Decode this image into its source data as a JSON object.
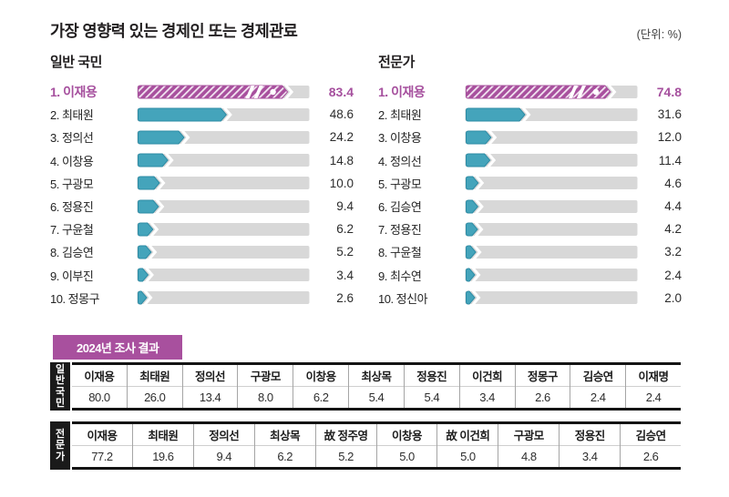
{
  "header": {
    "title": "가장 영향력 있는 경제인 또는 경제관료",
    "unit_label": "(단위: %)"
  },
  "badge": {
    "label": "2024년 조사 결과"
  },
  "colors": {
    "magenta": "#a8509e",
    "teal": "#44a4bb",
    "teal_edge": "#2d8ba4",
    "track_gray": "#d8d8d8",
    "table_label_bg": "#1a1a1a"
  },
  "chart_data": [
    {
      "type": "bar",
      "title": "일반 국민",
      "unit": "%",
      "xlim": [
        0,
        100
      ],
      "categories": [
        "이재용",
        "최태원",
        "정의선",
        "이창용",
        "구광모",
        "정용진",
        "구윤철",
        "김승연",
        "이부진",
        "정몽구"
      ],
      "values": [
        83.4,
        48.6,
        24.2,
        14.8,
        10.0,
        9.4,
        6.2,
        5.2,
        3.4,
        2.6
      ],
      "highlight_index": 0,
      "highlight_style": "magenta-hatch-axis-break",
      "highlight_display_pct": 84
    },
    {
      "type": "bar",
      "title": "전문가",
      "unit": "%",
      "xlim": [
        0,
        100
      ],
      "categories": [
        "이재용",
        "최태원",
        "이창용",
        "정의선",
        "구광모",
        "김승연",
        "정용진",
        "구윤철",
        "최수연",
        "정신아"
      ],
      "values": [
        74.8,
        31.6,
        12.0,
        11.4,
        4.6,
        4.4,
        4.2,
        3.2,
        2.4,
        2.0
      ],
      "highlight_index": 0,
      "highlight_style": "magenta-hatch-axis-break",
      "highlight_display_pct": 81
    },
    {
      "type": "table",
      "row_label": "일반국민",
      "categories": [
        "이재용",
        "최태원",
        "정의선",
        "구광모",
        "이창용",
        "최상목",
        "정용진",
        "이건희",
        "정몽구",
        "김승연",
        "이재명"
      ],
      "values": [
        80.0,
        26.0,
        13.4,
        8.0,
        6.2,
        5.4,
        5.4,
        3.4,
        2.6,
        2.4,
        2.4
      ]
    },
    {
      "type": "table",
      "row_label": "전문가",
      "categories": [
        "이재용",
        "최태원",
        "정의선",
        "최상목",
        "故 정주영",
        "이창용",
        "故 이건희",
        "구광모",
        "정용진",
        "김승연"
      ],
      "values": [
        77.2,
        19.6,
        9.4,
        6.2,
        5.2,
        5.0,
        5.0,
        4.8,
        3.4,
        2.6
      ]
    }
  ]
}
